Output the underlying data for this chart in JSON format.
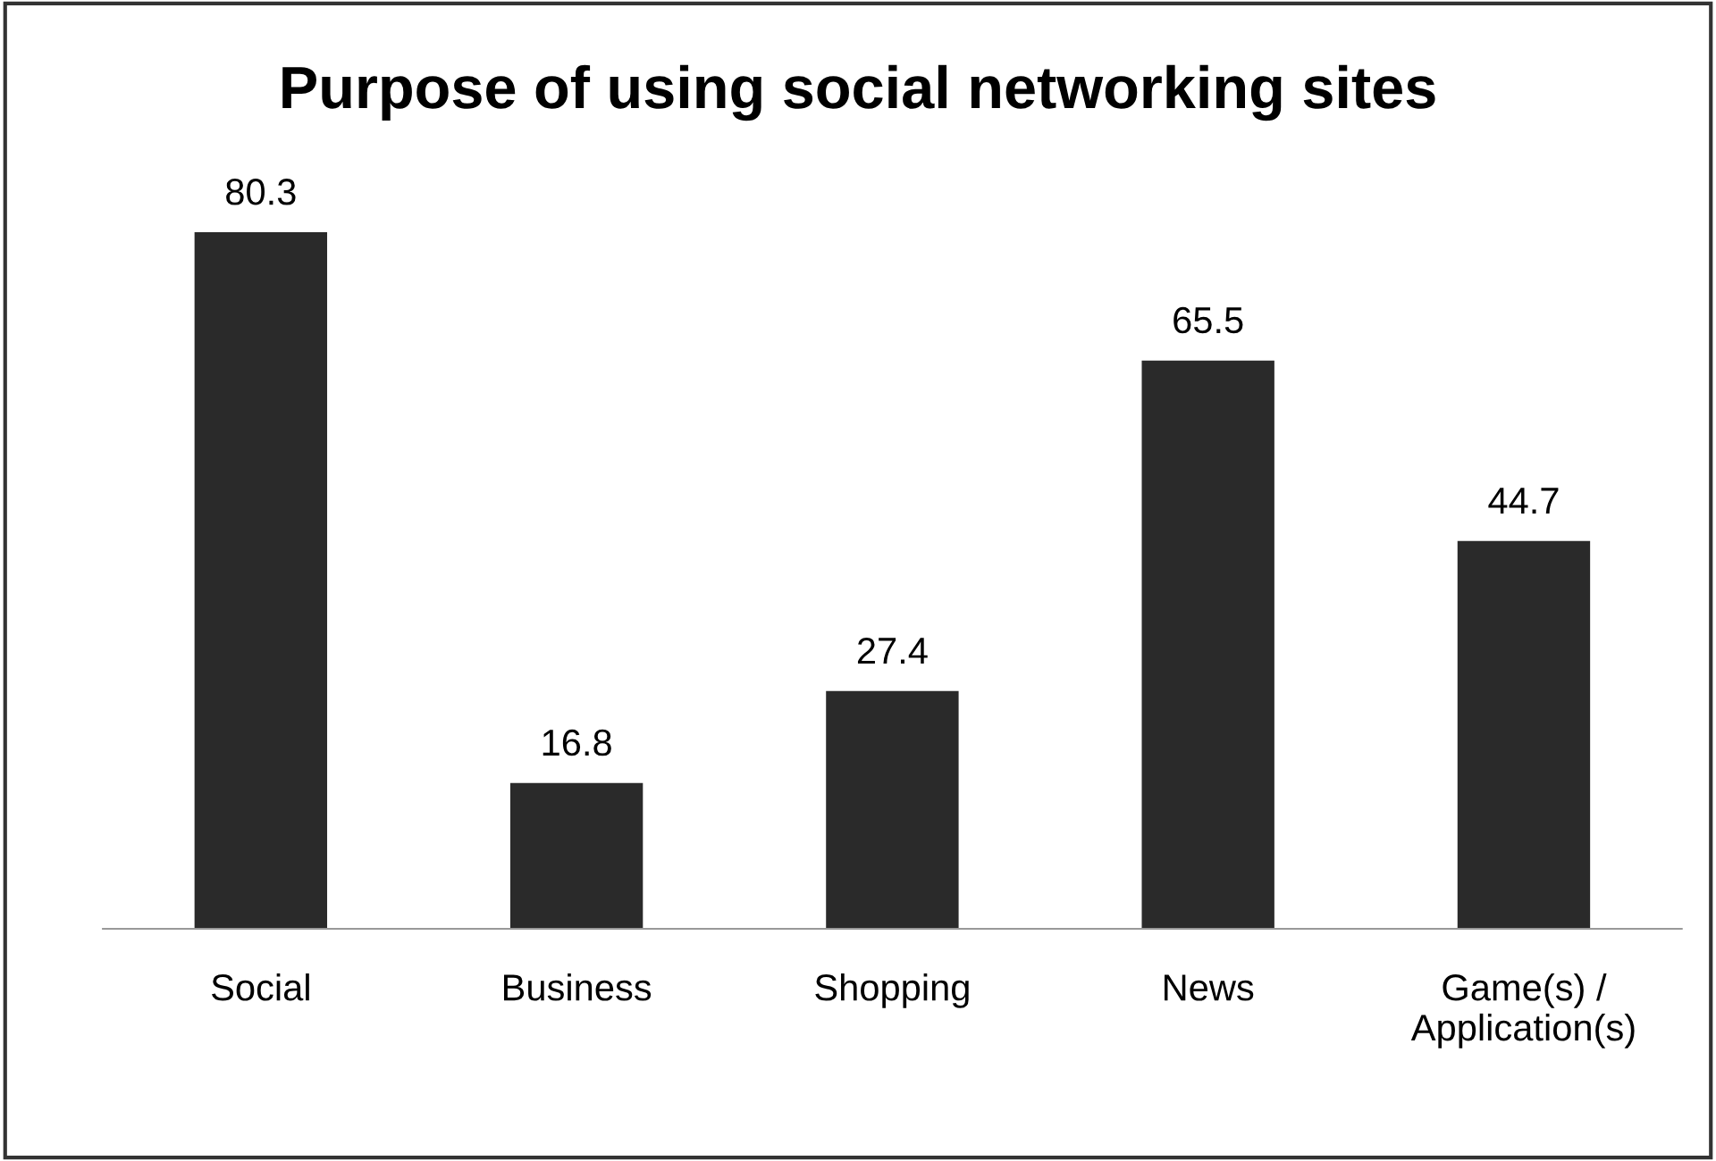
{
  "chart_data": {
    "type": "bar",
    "title": "Purpose of using social networking sites",
    "categories": [
      "Social",
      "Business",
      "Shopping",
      "News",
      "Game(s) /\nApplication(s)"
    ],
    "values": [
      80.3,
      16.8,
      27.4,
      65.5,
      44.7
    ],
    "color": "#2a2a2a",
    "data_labels": true,
    "grid": false,
    "tick_labels": "x"
  }
}
